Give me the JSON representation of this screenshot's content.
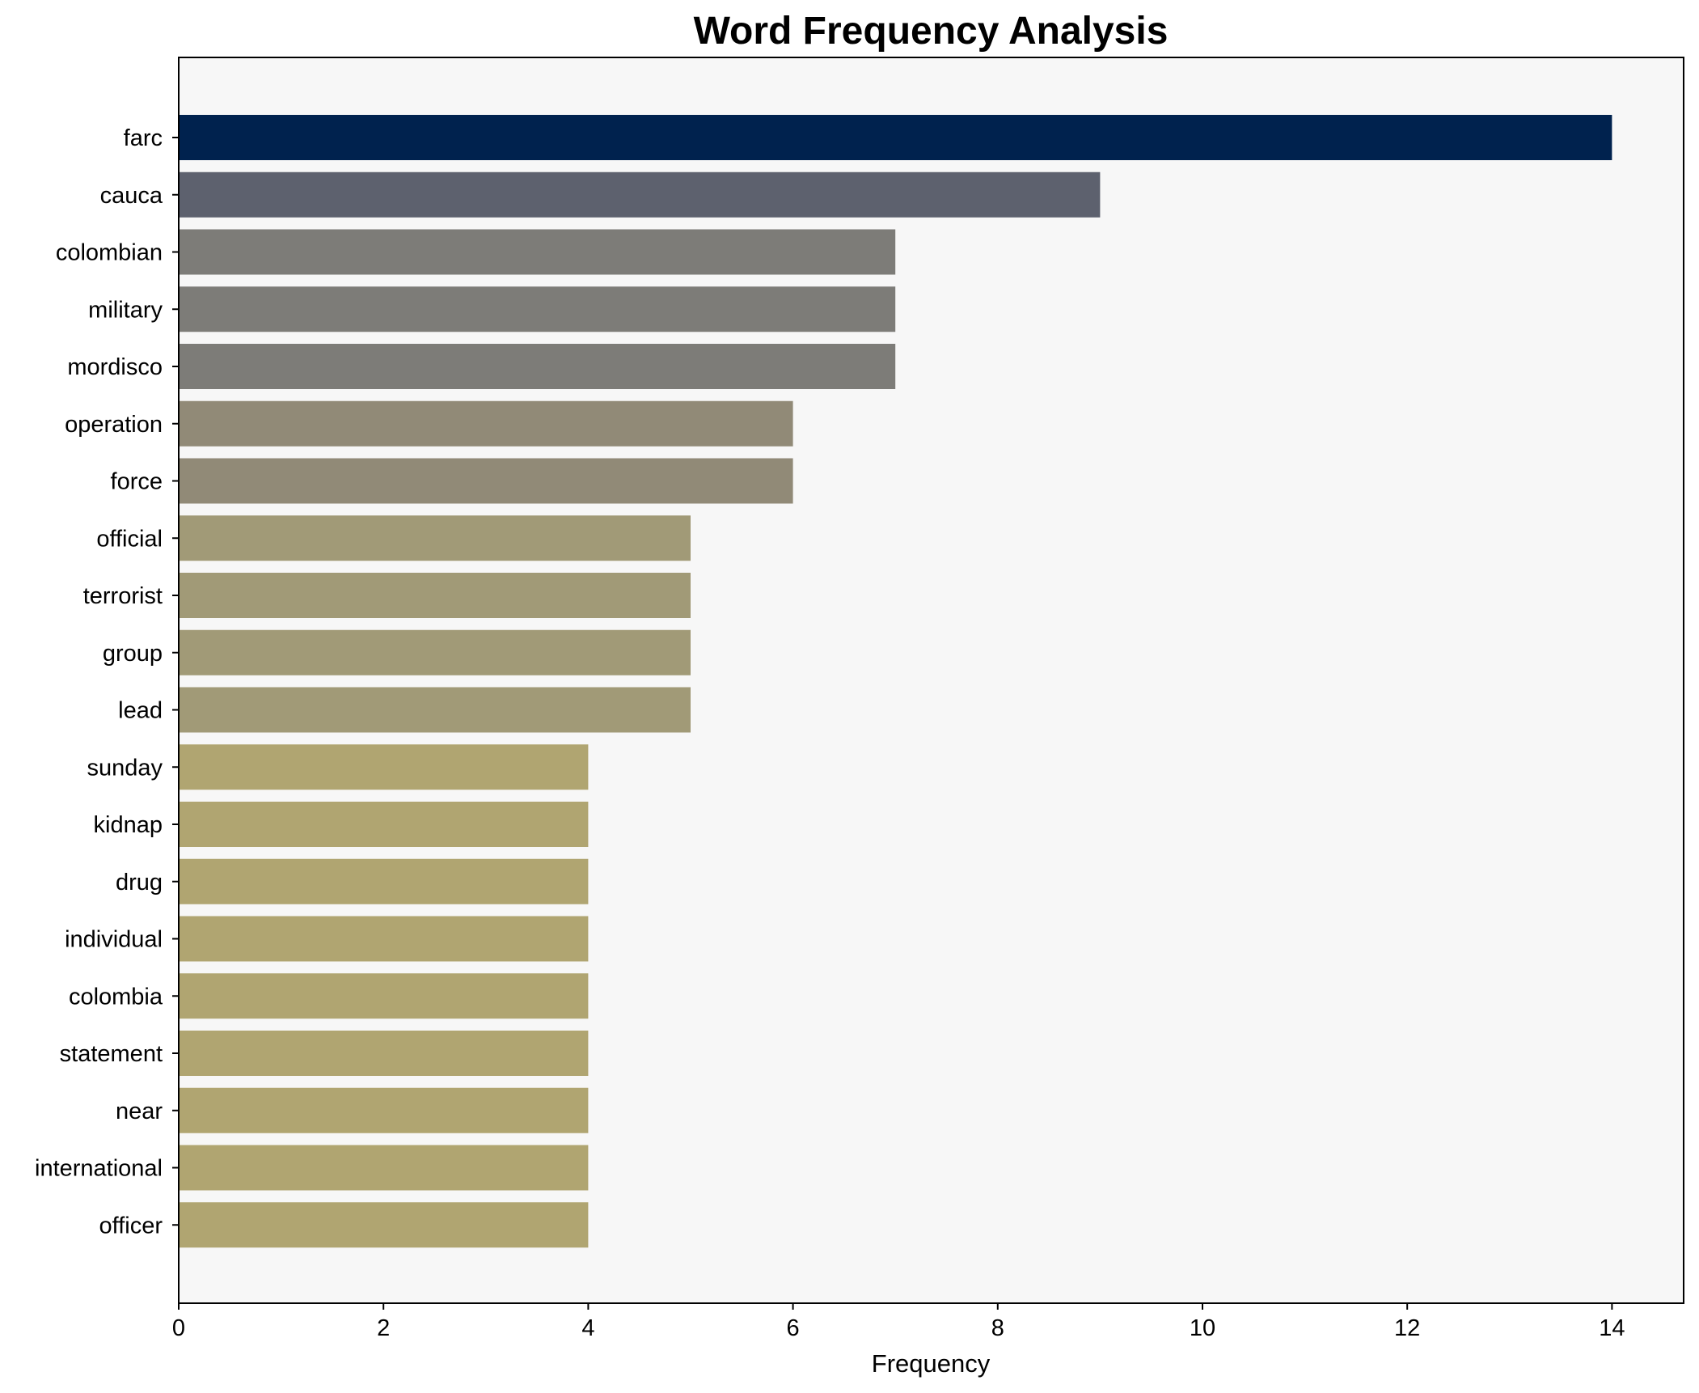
{
  "chart_data": {
    "type": "bar",
    "orientation": "horizontal",
    "title": "Word Frequency Analysis",
    "xlabel": "Frequency",
    "ylabel": "",
    "xlim": [
      0,
      14.7
    ],
    "xticks": [
      0,
      2,
      4,
      6,
      8,
      10,
      12,
      14
    ],
    "grid": false,
    "background_color": "#f7f7f7",
    "categories": [
      "farc",
      "cauca",
      "colombian",
      "military",
      "mordisco",
      "operation",
      "force",
      "official",
      "terrorist",
      "group",
      "lead",
      "sunday",
      "kidnap",
      "drug",
      "individual",
      "colombia",
      "statement",
      "near",
      "international",
      "officer"
    ],
    "values": [
      14,
      9,
      7,
      7,
      7,
      6,
      6,
      5,
      5,
      5,
      5,
      4,
      4,
      4,
      4,
      4,
      4,
      4,
      4,
      4
    ],
    "colors": [
      "#00224e",
      "#5d616e",
      "#7d7c78",
      "#7d7c78",
      "#7d7c78",
      "#918a77",
      "#918a77",
      "#a19a77",
      "#a19a77",
      "#a19a77",
      "#a19a77",
      "#b0a571",
      "#b0a571",
      "#b0a571",
      "#b0a571",
      "#b0a571",
      "#b0a571",
      "#b0a571",
      "#b0a571",
      "#b0a571"
    ]
  }
}
